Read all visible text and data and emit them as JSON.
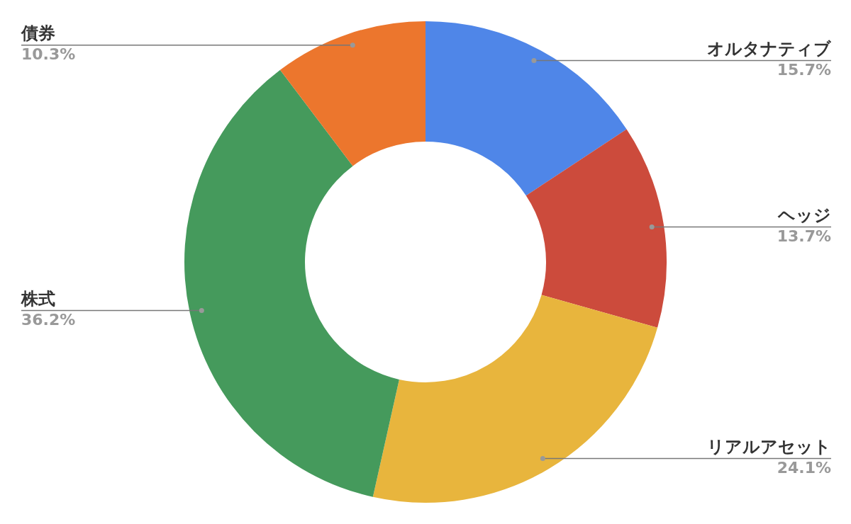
{
  "chart_data": {
    "type": "donut",
    "categories": [
      "オルタナティブ",
      "ヘッジ",
      "リアルアセット",
      "株式",
      "債券"
    ],
    "values": [
      15.7,
      13.7,
      24.1,
      36.2,
      10.3
    ],
    "colors": [
      "#4f86e8",
      "#cc4b3c",
      "#e8b53d",
      "#459a5c",
      "#ec762d"
    ],
    "value_labels": [
      "15.7%",
      "13.7%",
      "24.1%",
      "36.2%",
      "10.3%"
    ],
    "legend": false
  }
}
